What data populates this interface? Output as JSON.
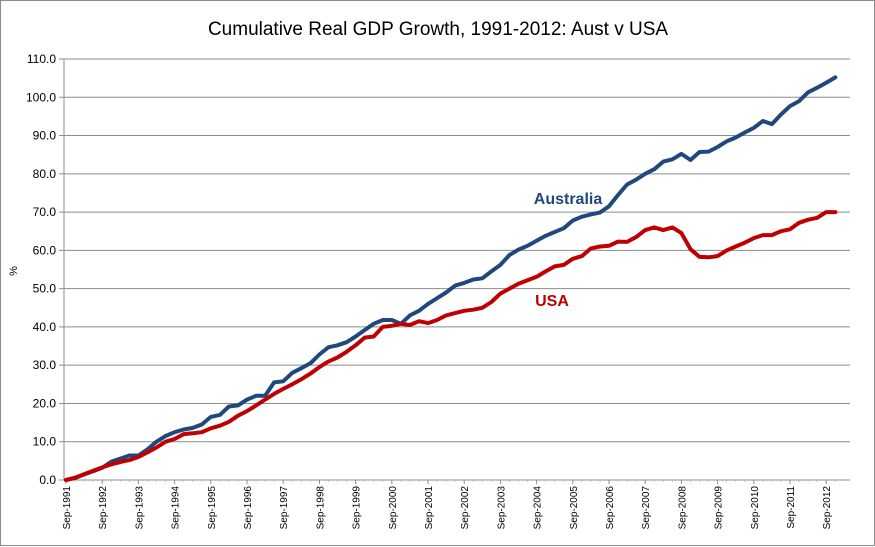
{
  "chart_data": {
    "type": "line",
    "title": "Cumulative Real GDP Growth, 1991-2012: Aust v USA",
    "xlabel": "",
    "ylabel": "%",
    "ylim": [
      0,
      110
    ],
    "yticks": [
      "0.0",
      "10.0",
      "20.0",
      "30.0",
      "40.0",
      "50.0",
      "60.0",
      "70.0",
      "80.0",
      "90.0",
      "100.0",
      "110.0"
    ],
    "grid": true,
    "legend": "inline",
    "xticks": [
      "Sep-1991",
      "Sep-1992",
      "Sep-1993",
      "Sep-1994",
      "Sep-1995",
      "Sep-1996",
      "Sep-1997",
      "Sep-1998",
      "Sep-1999",
      "Sep-2000",
      "Sep-2001",
      "Sep-2002",
      "Sep-2003",
      "Sep-2004",
      "Sep-2005",
      "Sep-2006",
      "Sep-2007",
      "Sep-2008",
      "Sep-2009",
      "Sep-2010",
      "Sep-2011",
      "Sep-2012"
    ],
    "x_frequency": "quarterly",
    "series": [
      {
        "name": "Australia",
        "color": "#1f497d",
        "values": [
          0.0,
          0.5,
          1.5,
          2.3,
          3.2,
          4.8,
          5.6,
          6.4,
          6.4,
          8.0,
          10.0,
          11.5,
          12.5,
          13.2,
          13.6,
          14.5,
          16.5,
          17.0,
          19.2,
          19.5,
          21.0,
          22.0,
          22.0,
          25.5,
          25.8,
          28.0,
          29.2,
          30.5,
          32.8,
          34.7,
          35.2,
          36.0,
          37.5,
          39.2,
          40.8,
          41.8,
          41.8,
          40.8,
          43.0,
          44.2,
          46.0,
          47.5,
          49.0,
          50.8,
          51.5,
          52.4,
          52.7,
          54.5,
          56.2,
          58.8,
          60.2,
          61.2,
          62.5,
          63.8,
          64.8,
          65.8,
          67.8,
          68.8,
          69.4,
          69.9,
          71.5,
          74.5,
          77.2,
          78.5,
          80.0,
          81.2,
          83.2,
          83.8,
          85.2,
          83.6,
          85.7,
          85.8,
          87.0,
          88.5,
          89.5,
          90.8,
          92.0,
          93.8,
          93.0,
          95.5,
          97.7,
          99.0,
          101.3,
          102.5,
          103.8,
          105.2
        ]
      },
      {
        "name": "USA",
        "color": "#c00000",
        "values": [
          0.0,
          0.6,
          1.5,
          2.4,
          3.3,
          4.1,
          4.7,
          5.2,
          6.0,
          7.2,
          8.5,
          10.0,
          10.7,
          12.0,
          12.2,
          12.5,
          13.5,
          14.2,
          15.2,
          16.8,
          18.0,
          19.5,
          21.0,
          22.5,
          23.8,
          25.0,
          26.3,
          27.8,
          29.5,
          31.0,
          32.0,
          33.5,
          35.2,
          37.2,
          37.5,
          40.0,
          40.3,
          40.8,
          40.5,
          41.5,
          41.0,
          41.8,
          43.0,
          43.6,
          44.2,
          44.5,
          45.0,
          46.5,
          48.7,
          50.0,
          51.3,
          52.2,
          53.1,
          54.5,
          55.8,
          56.2,
          57.8,
          58.5,
          60.5,
          61.0,
          61.2,
          62.3,
          62.2,
          63.5,
          65.3,
          66.0,
          65.3,
          66.0,
          64.5,
          60.3,
          58.3,
          58.2,
          58.5,
          60.0,
          61.0,
          62.0,
          63.2,
          64.0,
          64.0,
          65.0,
          65.5,
          67.2,
          68.0,
          68.5,
          70.0,
          70.0
        ]
      }
    ],
    "annotations": [
      {
        "text": "Australia",
        "series": "Australia"
      },
      {
        "text": "USA",
        "series": "USA"
      }
    ]
  }
}
